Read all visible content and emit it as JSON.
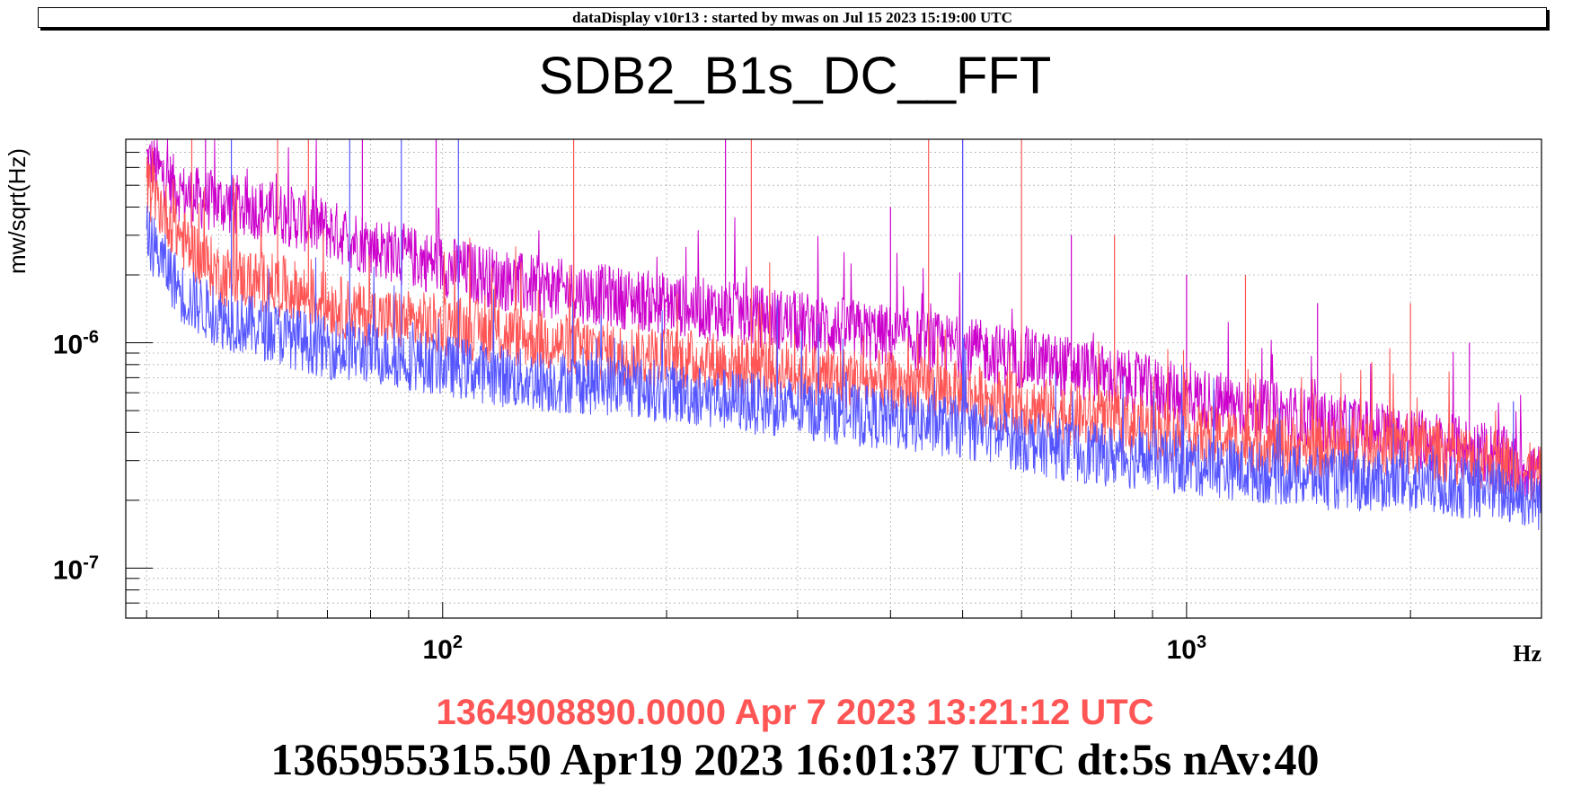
{
  "header": {
    "text": "dataDisplay v10r13 : started by mwas on Jul 15 2023 15:19:00 UTC"
  },
  "footer": {
    "reference_line": "1364908890.0000 Apr 7 2023 13:21:12 UTC",
    "current_line": "1365955315.50 Apr19 2023 16:01:37 UTC dt:5s nAv:40"
  },
  "colors": {
    "magenta": "#cc00cc",
    "red": "#ff5555",
    "blue": "#5555ff",
    "grid": "#b0b0b0"
  },
  "chart_data": {
    "type": "line",
    "title": "SDB2_B1s_DC__FFT",
    "xlabel": "Hz",
    "ylabel": "mw/sqrt(Hz)",
    "xscale": "log",
    "yscale": "log",
    "xlim": [
      37.5,
      3000
    ],
    "ylim": [
      6e-08,
      8e-06
    ],
    "grid": true,
    "x_tick_labels": [
      {
        "value": 100,
        "base": "10",
        "exp": "2"
      },
      {
        "value": 1000,
        "base": "10",
        "exp": "3"
      }
    ],
    "y_tick_labels": [
      {
        "value": 1e-06,
        "base": "10",
        "exp": "-6"
      },
      {
        "value": 1e-07,
        "base": "10",
        "exp": "-7"
      }
    ],
    "series": [
      {
        "color": "#cc00cc",
        "floor_points": [
          [
            40,
            6.5e-06
          ],
          [
            45,
            4.5e-06
          ],
          [
            50,
            4.2e-06
          ],
          [
            60,
            3.8e-06
          ],
          [
            70,
            3.2e-06
          ],
          [
            80,
            2.7e-06
          ],
          [
            100,
            2.2e-06
          ],
          [
            130,
            1.8e-06
          ],
          [
            170,
            1.6e-06
          ],
          [
            250,
            1.35e-06
          ],
          [
            350,
            1.15e-06
          ],
          [
            500,
            9.5e-07
          ],
          [
            700,
            7.8e-07
          ],
          [
            1000,
            5.8e-07
          ],
          [
            1500,
            4.5e-07
          ],
          [
            2000,
            3.8e-07
          ],
          [
            2600,
            3.2e-07
          ],
          [
            3000,
            2.6e-07
          ]
        ],
        "lines": [
          [
            48,
            8e-06
          ],
          [
            58,
            4.5e-06
          ],
          [
            78,
            8e-06
          ],
          [
            98,
            8e-06
          ],
          [
            150,
            3e-06
          ],
          [
            240,
            8e-06
          ],
          [
            400,
            4e-06
          ],
          [
            500,
            8e-06
          ],
          [
            700,
            3e-06
          ],
          [
            1000,
            2e-06
          ],
          [
            1500,
            1.5e-06
          ],
          [
            2400,
            1e-06
          ]
        ]
      },
      {
        "color": "#ff5555",
        "floor_points": [
          [
            40,
            5e-06
          ],
          [
            45,
            2.8e-06
          ],
          [
            50,
            2e-06
          ],
          [
            60,
            1.8e-06
          ],
          [
            70,
            1.5e-06
          ],
          [
            80,
            1.3e-06
          ],
          [
            100,
            1.2e-06
          ],
          [
            130,
            1.05e-06
          ],
          [
            170,
            9e-07
          ],
          [
            250,
            8e-07
          ],
          [
            350,
            7e-07
          ],
          [
            500,
            6e-07
          ],
          [
            700,
            4.8e-07
          ],
          [
            1000,
            3.9e-07
          ],
          [
            1500,
            3.4e-07
          ],
          [
            2000,
            3.5e-07
          ],
          [
            2600,
            3e-07
          ],
          [
            3000,
            2.5e-07
          ]
        ],
        "lines": [
          [
            46,
            8e-06
          ],
          [
            60,
            8e-06
          ],
          [
            66,
            8e-06
          ],
          [
            150,
            8e-06
          ],
          [
            260,
            8e-06
          ],
          [
            450,
            8e-06
          ],
          [
            600,
            8e-06
          ],
          [
            800,
            3e-06
          ],
          [
            1200,
            2e-06
          ],
          [
            2000,
            1.5e-06
          ]
        ]
      },
      {
        "color": "#5555ff",
        "floor_points": [
          [
            40,
            3e-06
          ],
          [
            45,
            1.6e-06
          ],
          [
            50,
            1.3e-06
          ],
          [
            60,
            1.1e-06
          ],
          [
            70,
            9.5e-07
          ],
          [
            80,
            9e-07
          ],
          [
            100,
            8e-07
          ],
          [
            130,
            6.8e-07
          ],
          [
            170,
            6.5e-07
          ],
          [
            250,
            5.5e-07
          ],
          [
            350,
            4.8e-07
          ],
          [
            500,
            4.2e-07
          ],
          [
            700,
            3.3e-07
          ],
          [
            1000,
            2.9e-07
          ],
          [
            1500,
            2.5e-07
          ],
          [
            2000,
            2.4e-07
          ],
          [
            2600,
            2.2e-07
          ],
          [
            3000,
            2e-07
          ]
        ],
        "lines": [
          [
            52,
            8e-06
          ],
          [
            75,
            8e-06
          ],
          [
            88,
            8e-06
          ],
          [
            105,
            8e-06
          ],
          [
            500,
            8e-06
          ],
          [
            2750,
            5.5e-07
          ]
        ]
      }
    ]
  }
}
